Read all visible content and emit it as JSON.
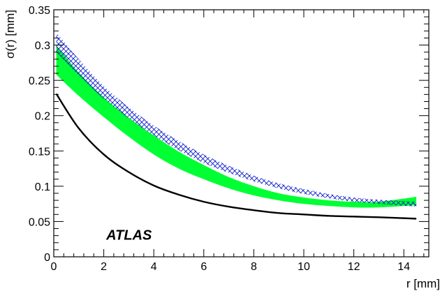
{
  "chart_data": {
    "type": "line",
    "xlabel": "r [mm]",
    "ylabel": "σ(r) [mm]",
    "xlim": [
      0,
      15
    ],
    "ylim": [
      0,
      0.35
    ],
    "x_ticks": [
      0,
      2,
      4,
      6,
      8,
      10,
      12,
      14
    ],
    "y_ticks": [
      0,
      0.05,
      0.1,
      0.15,
      0.2,
      0.25,
      0.3,
      0.35
    ],
    "x_tick_labels": [
      "0",
      "2",
      "4",
      "6",
      "8",
      "10",
      "12",
      "14"
    ],
    "y_tick_labels": [
      "0",
      "0.05",
      "0.1",
      "0.15",
      "0.2",
      "0.25",
      "0.3",
      "0.35"
    ],
    "annotation": "ATLAS",
    "grid": false,
    "colors": {
      "green_band": "#00ff33",
      "hatched_band": "#0a1ccc",
      "line": "#000000"
    },
    "series": [
      {
        "style": "line",
        "x": [
          0.1,
          1,
          2,
          3,
          4,
          5,
          6,
          7,
          8,
          9,
          10,
          11,
          12,
          13,
          14.5
        ],
        "y": [
          0.231,
          0.182,
          0.145,
          0.12,
          0.101,
          0.088,
          0.078,
          0.071,
          0.066,
          0.062,
          0.06,
          0.058,
          0.057,
          0.056,
          0.054
        ]
      },
      {
        "style": "band",
        "x": [
          0.1,
          1,
          2,
          3,
          4,
          5,
          6,
          7,
          8,
          9,
          10,
          11,
          12,
          13,
          14.5
        ],
        "lower": [
          0.258,
          0.228,
          0.198,
          0.17,
          0.145,
          0.125,
          0.11,
          0.097,
          0.087,
          0.08,
          0.075,
          0.072,
          0.07,
          0.07,
          0.073
        ],
        "upper": [
          0.3,
          0.261,
          0.226,
          0.197,
          0.172,
          0.149,
          0.13,
          0.113,
          0.1,
          0.09,
          0.084,
          0.08,
          0.078,
          0.078,
          0.085
        ]
      },
      {
        "style": "hatched-band",
        "x": [
          0.1,
          1,
          2,
          3,
          4,
          5,
          6,
          7,
          8,
          9,
          10,
          11,
          12,
          13,
          14.5
        ],
        "lower": [
          0.29,
          0.257,
          0.224,
          0.196,
          0.172,
          0.151,
          0.133,
          0.119,
          0.107,
          0.097,
          0.089,
          0.083,
          0.078,
          0.075,
          0.071
        ],
        "upper": [
          0.318,
          0.28,
          0.242,
          0.212,
          0.186,
          0.164,
          0.145,
          0.129,
          0.115,
          0.104,
          0.096,
          0.089,
          0.084,
          0.081,
          0.078
        ]
      }
    ]
  }
}
